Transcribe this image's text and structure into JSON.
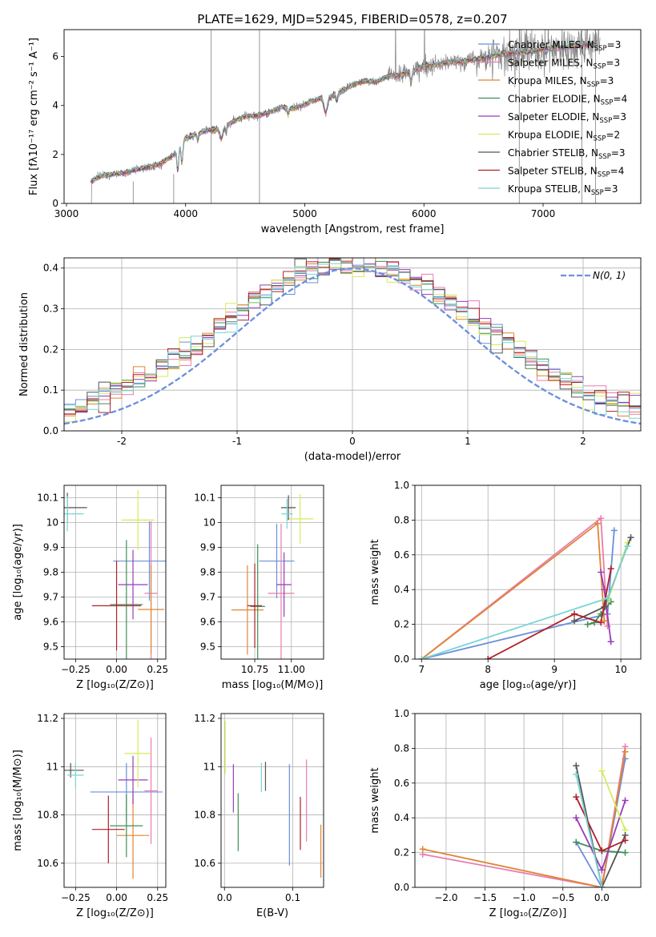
{
  "title": "PLATE=1629, MJD=52945, FIBERID=0578, z=0.207",
  "colors": {
    "chabrier_miles": "#6a8fdc",
    "salpeter_miles": "#e97cae",
    "kroupa_miles": "#e08533",
    "chabrier_elodie": "#3f8f55",
    "salpeter_elodie": "#9a3bb8",
    "kroupa_elodie": "#d6ea5a",
    "chabrier_stelib": "#555555",
    "salpeter_stelib": "#b0202a",
    "kroupa_stelib": "#79d4d6",
    "data_spectrum": "#808080",
    "gaussian": "#6a8fdc"
  },
  "chart_data": [
    {
      "id": "spectrum",
      "type": "line",
      "xlabel": "wavelength [Angstrom, rest frame]",
      "ylabel": "Flux [fλ10⁻¹⁷ erg cm⁻² s⁻¹ A⁻¹]",
      "xlim": [
        2980,
        7820
      ],
      "ylim": [
        0,
        7.1
      ],
      "xticks": [
        3000,
        4000,
        5000,
        6000,
        7000
      ],
      "yticks": [
        0,
        2,
        4,
        6
      ],
      "legend_position": "top-right",
      "legend": [
        "Chabrier MILES, N_SSP=3",
        "Salpeter MILES, N_SSP=3",
        "Kroupa MILES, N_SSP=3",
        "Chabrier ELODIE, N_SSP=4",
        "Salpeter ELODIE, N_SSP=3",
        "Kroupa ELODIE, N_SSP=2",
        "Chabrier STELIB, N_SSP=3",
        "Salpeter STELIB, N_SSP=4",
        "Kroupa STELIB, N_SSP=3"
      ],
      "continuum": {
        "x": [
          3200,
          3300,
          3400,
          3500,
          3600,
          3700,
          3800,
          3900,
          4000,
          4100,
          4200,
          4300,
          4400,
          4500,
          4600,
          4700,
          4800,
          4900,
          5000,
          5100,
          5200,
          5300,
          5400,
          5500,
          5600,
          5700,
          5800,
          5900,
          6000,
          6100,
          6200,
          6300,
          6400,
          6500,
          6600,
          6700,
          6800,
          6900,
          7000,
          7100,
          7200,
          7300,
          7400
        ],
        "y": [
          0.9,
          1.15,
          1.2,
          1.25,
          1.4,
          1.5,
          1.65,
          2.0,
          2.65,
          2.85,
          3.0,
          3.05,
          3.35,
          3.55,
          3.6,
          3.7,
          3.95,
          3.85,
          4.05,
          4.25,
          4.35,
          4.55,
          4.85,
          5.0,
          4.95,
          5.2,
          5.25,
          5.4,
          5.6,
          5.65,
          5.75,
          5.8,
          5.85,
          5.95,
          6.05,
          6.1,
          6.15,
          6.2,
          6.3,
          6.35,
          6.4,
          6.45,
          6.5
        ]
      }
    },
    {
      "id": "residuals",
      "type": "line",
      "xlabel": "(data-model)/error",
      "ylabel": "Normed distribution",
      "xlim": [
        -2.5,
        2.5
      ],
      "ylim": [
        0,
        0.425
      ],
      "xticks": [
        -2,
        -1,
        0,
        1,
        2
      ],
      "yticks": [
        0.0,
        0.1,
        0.2,
        0.3,
        0.4
      ],
      "grid": true,
      "legend_position": "top-right",
      "legend": [
        "N(0, 1)"
      ],
      "bin_width": 0.1,
      "bins_from": -2.5,
      "bins_to": 2.5
    },
    {
      "id": "z_vs_age",
      "type": "scatter",
      "xlabel": "Z [log₁₀(Z/Z⊙)]",
      "ylabel": "age  [log₁₀(age/yr)]",
      "xlim": [
        -0.32,
        0.3
      ],
      "ylim": [
        9.45,
        10.15
      ],
      "xticks": [
        -0.25,
        0.0,
        0.25
      ],
      "xticklabels": [
        "−0.25",
        "0.00",
        "0.25"
      ],
      "yticks": [
        9.5,
        9.6,
        9.7,
        9.8,
        9.9,
        10.0,
        10.1
      ],
      "grid": true,
      "points": [
        {
          "model": "chabrier_miles",
          "x": 0.2,
          "xerr": 0.22,
          "y": 9.845,
          "yerr": 0.16
        },
        {
          "model": "salpeter_miles",
          "x": 0.21,
          "xerr": 0.04,
          "y": 9.715,
          "yerr": 0.29
        },
        {
          "model": "kroupa_miles",
          "x": 0.21,
          "xerr": 0.08,
          "y": 9.65,
          "yerr": 0.18
        },
        {
          "model": "chabrier_elodie",
          "x": 0.06,
          "xerr": 0.1,
          "y": 9.67,
          "yerr": 0.26
        },
        {
          "model": "salpeter_elodie",
          "x": 0.1,
          "xerr": 0.09,
          "y": 9.75,
          "yerr": 0.14
        },
        {
          "model": "kroupa_elodie",
          "x": 0.13,
          "xerr": 0.1,
          "y": 10.01,
          "yerr": 0.12
        },
        {
          "model": "chabrier_stelib",
          "x": -0.3,
          "xerr": 0.12,
          "y": 10.06,
          "yerr": 0.06
        },
        {
          "model": "salpeter_stelib",
          "x": 0.0,
          "xerr": 0.15,
          "y": 9.665,
          "yerr": 0.18
        },
        {
          "model": "kroupa_stelib",
          "x": -0.3,
          "xerr": 0.1,
          "y": 10.035,
          "yerr": 0.07
        }
      ]
    },
    {
      "id": "mass_vs_age",
      "type": "scatter",
      "xlabel": "mass [log₁₀(M/M⊙)]",
      "ylabel": "",
      "xlim": [
        10.52,
        11.22
      ],
      "ylim": [
        9.45,
        10.15
      ],
      "xticks": [
        10.75,
        11.0
      ],
      "xticklabels": [
        "10.75",
        "11.00"
      ],
      "yticks": [
        9.5,
        9.6,
        9.7,
        9.8,
        9.9,
        10.0,
        10.1
      ],
      "grid": true,
      "points": [
        {
          "model": "chabrier_miles",
          "x": 10.9,
          "xerr": 0.12,
          "y": 9.845,
          "yerr": 0.15
        },
        {
          "model": "salpeter_miles",
          "x": 10.93,
          "xerr": 0.09,
          "y": 9.715,
          "yerr": 0.28
        },
        {
          "model": "kroupa_miles",
          "x": 10.7,
          "xerr": 0.11,
          "y": 9.648,
          "yerr": 0.18
        },
        {
          "model": "chabrier_elodie",
          "x": 10.77,
          "xerr": 0.05,
          "y": 9.662,
          "yerr": 0.25
        },
        {
          "model": "salpeter_elodie",
          "x": 10.95,
          "xerr": 0.05,
          "y": 9.75,
          "yerr": 0.13
        },
        {
          "model": "kroupa_elodie",
          "x": 11.06,
          "xerr": 0.09,
          "y": 10.015,
          "yerr": 0.1
        },
        {
          "model": "chabrier_stelib",
          "x": 10.98,
          "xerr": 0.05,
          "y": 10.06,
          "yerr": 0.05
        },
        {
          "model": "salpeter_stelib",
          "x": 10.75,
          "xerr": 0.05,
          "y": 9.665,
          "yerr": 0.17
        },
        {
          "model": "kroupa_stelib",
          "x": 10.97,
          "xerr": 0.04,
          "y": 10.035,
          "yerr": 0.06
        }
      ]
    },
    {
      "id": "age_vs_weight",
      "type": "line",
      "xlabel": "age  [log₁₀(age/yr)]",
      "ylabel": "mass weight",
      "xlim": [
        6.9,
        10.3
      ],
      "ylim": [
        0,
        1
      ],
      "xticks": [
        7,
        8,
        9,
        10
      ],
      "yticks": [
        0.0,
        0.2,
        0.4,
        0.6,
        0.8,
        1.0
      ],
      "grid": true,
      "series": [
        {
          "model": "chabrier_miles",
          "x": [
            7.0,
            9.8,
            9.9
          ],
          "y": [
            0.0,
            0.26,
            0.74
          ]
        },
        {
          "model": "salpeter_miles",
          "x": [
            7.0,
            9.7,
            9.8
          ],
          "y": [
            0.0,
            0.81,
            0.19
          ]
        },
        {
          "model": "kroupa_miles",
          "x": [
            7.0,
            9.65,
            9.75
          ],
          "y": [
            0.0,
            0.78,
            0.22
          ]
        },
        {
          "model": "chabrier_elodie",
          "x": [
            9.5,
            9.6,
            9.7,
            9.85
          ],
          "y": [
            0.2,
            0.21,
            0.26,
            0.33
          ]
        },
        {
          "model": "salpeter_elodie",
          "x": [
            9.7,
            9.75,
            9.85
          ],
          "y": [
            0.5,
            0.4,
            0.1
          ]
        },
        {
          "model": "kroupa_elodie",
          "x": [
            9.8,
            10.1
          ],
          "y": [
            0.33,
            0.67
          ]
        },
        {
          "model": "chabrier_stelib",
          "x": [
            9.3,
            9.75,
            10.15
          ],
          "y": [
            0.22,
            0.3,
            0.7
          ]
        },
        {
          "model": "salpeter_stelib",
          "x": [
            8.0,
            9.3,
            9.7,
            9.85
          ],
          "y": [
            0.0,
            0.26,
            0.21,
            0.52
          ]
        },
        {
          "model": "kroupa_stelib",
          "x": [
            7.0,
            9.8,
            10.1
          ],
          "y": [
            0.0,
            0.35,
            0.65
          ]
        }
      ]
    },
    {
      "id": "z_vs_mass",
      "type": "scatter",
      "xlabel": "Z [log₁₀(Z/Z⊙)]",
      "ylabel": "mass [log₁₀(M/M⊙)]",
      "xlim": [
        -0.32,
        0.3
      ],
      "ylim": [
        10.5,
        11.22
      ],
      "xticks": [
        -0.25,
        0.0,
        0.25
      ],
      "xticklabels": [
        "−0.25",
        "0.00",
        "0.25"
      ],
      "yticks": [
        10.6,
        10.8,
        11.0,
        11.2
      ],
      "grid": true,
      "points": [
        {
          "model": "chabrier_miles",
          "x": 0.06,
          "xerr": 0.22,
          "y": 10.895,
          "yerr": 0.12
        },
        {
          "model": "salpeter_miles",
          "x": 0.21,
          "xerr": 0.04,
          "y": 10.9,
          "yerr": 0.22
        },
        {
          "model": "kroupa_miles",
          "x": 0.1,
          "xerr": 0.1,
          "y": 10.715,
          "yerr": 0.18
        },
        {
          "model": "chabrier_elodie",
          "x": 0.06,
          "xerr": 0.1,
          "y": 10.755,
          "yerr": 0.13
        },
        {
          "model": "salpeter_elodie",
          "x": 0.1,
          "xerr": 0.09,
          "y": 10.945,
          "yerr": 0.1
        },
        {
          "model": "kroupa_elodie",
          "x": 0.13,
          "xerr": 0.08,
          "y": 11.055,
          "yerr": 0.14
        },
        {
          "model": "chabrier_stelib",
          "x": -0.28,
          "xerr": 0.08,
          "y": 10.985,
          "yerr": 0.03
        },
        {
          "model": "salpeter_stelib",
          "x": -0.05,
          "xerr": 0.1,
          "y": 10.74,
          "yerr": 0.14
        },
        {
          "model": "kroupa_stelib",
          "x": -0.25,
          "xerr": 0.05,
          "y": 10.965,
          "yerr": 0.05
        }
      ]
    },
    {
      "id": "ebv_vs_mass",
      "type": "scatter",
      "xlabel": "E(B-V)",
      "ylabel": "",
      "xlim": [
        -0.005,
        0.145
      ],
      "ylim": [
        10.5,
        11.22
      ],
      "xticks": [
        0.0,
        0.1
      ],
      "xticklabels": [
        "0.0",
        "0.1"
      ],
      "yticks": [
        10.6,
        10.8,
        11.0,
        11.2
      ],
      "grid": true,
      "points": [
        {
          "model": "chabrier_miles",
          "x": 0.095,
          "xerr": 0,
          "y": 10.8,
          "yerr": 0.21
        },
        {
          "model": "salpeter_miles",
          "x": 0.12,
          "xerr": 0,
          "y": 10.86,
          "yerr": 0.17
        },
        {
          "model": "kroupa_miles",
          "x": 0.141,
          "xerr": 0,
          "y": 10.65,
          "yerr": 0.11
        },
        {
          "model": "chabrier_elodie",
          "x": 0.02,
          "xerr": 0,
          "y": 10.77,
          "yerr": 0.12
        },
        {
          "model": "salpeter_elodie",
          "x": 0.013,
          "xerr": 0,
          "y": 10.91,
          "yerr": 0.1
        },
        {
          "model": "kroupa_elodie",
          "x": 0.001,
          "xerr": 0,
          "y": 11.08,
          "yerr": 0.11
        },
        {
          "model": "chabrier_stelib",
          "x": 0.06,
          "xerr": 0,
          "y": 10.96,
          "yerr": 0.06
        },
        {
          "model": "salpeter_stelib",
          "x": 0.111,
          "xerr": 0,
          "y": 10.765,
          "yerr": 0.11
        },
        {
          "model": "kroupa_stelib",
          "x": 0.054,
          "xerr": 0,
          "y": 10.955,
          "yerr": 0.06
        }
      ]
    },
    {
      "id": "z_vs_weight",
      "type": "line",
      "xlabel": "Z [log₁₀(Z/Z⊙)]",
      "ylabel": "mass weight",
      "xlim": [
        -2.4,
        0.5
      ],
      "ylim": [
        0,
        1
      ],
      "xticks": [
        -2.0,
        -1.5,
        -1.0,
        -0.5,
        0.0
      ],
      "xticklabels": [
        "−2.0",
        "−1.5",
        "−1.0",
        "−0.5",
        "0.0"
      ],
      "yticks": [
        0.0,
        0.2,
        0.4,
        0.6,
        0.8,
        1.0
      ],
      "grid": true,
      "series": [
        {
          "model": "chabrier_miles",
          "x": [
            -0.33,
            0.0,
            0.3
          ],
          "y": [
            0.26,
            0.0,
            0.74
          ]
        },
        {
          "model": "salpeter_miles",
          "x": [
            -2.3,
            0.0,
            0.3
          ],
          "y": [
            0.19,
            0.0,
            0.81
          ]
        },
        {
          "model": "kroupa_miles",
          "x": [
            -2.3,
            0.0,
            0.3
          ],
          "y": [
            0.22,
            0.0,
            0.78
          ]
        },
        {
          "model": "chabrier_elodie",
          "x": [
            -0.33,
            0.0,
            0.3
          ],
          "y": [
            0.26,
            0.21,
            0.2
          ]
        },
        {
          "model": "salpeter_elodie",
          "x": [
            -0.33,
            0.0,
            0.3
          ],
          "y": [
            0.4,
            0.1,
            0.5
          ]
        },
        {
          "model": "kroupa_elodie",
          "x": [
            0.0,
            0.3
          ],
          "y": [
            0.67,
            0.33
          ]
        },
        {
          "model": "chabrier_stelib",
          "x": [
            -0.33,
            0.0,
            0.3
          ],
          "y": [
            0.7,
            0.0,
            0.3
          ]
        },
        {
          "model": "salpeter_stelib",
          "x": [
            -0.33,
            0.0,
            0.3
          ],
          "y": [
            0.52,
            0.21,
            0.27
          ]
        },
        {
          "model": "kroupa_stelib",
          "x": [
            -0.33,
            0.0
          ],
          "y": [
            0.65,
            0.0
          ]
        }
      ]
    }
  ]
}
